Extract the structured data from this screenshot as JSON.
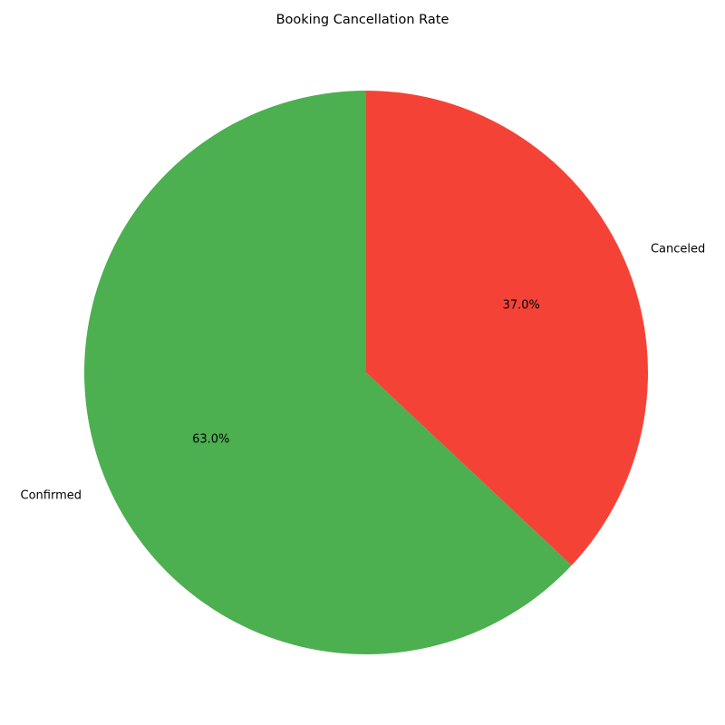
{
  "chart_data": {
    "type": "pie",
    "title": "Booking Cancellation Rate",
    "start_angle_deg": 90,
    "direction": "counterclockwise",
    "slices": [
      {
        "label": "Confirmed",
        "value": 63.0,
        "pct_label": "63.0%",
        "color": "#4caf50"
      },
      {
        "label": "Canceled",
        "value": 37.0,
        "pct_label": "37.0%",
        "color": "#f44336"
      }
    ]
  }
}
